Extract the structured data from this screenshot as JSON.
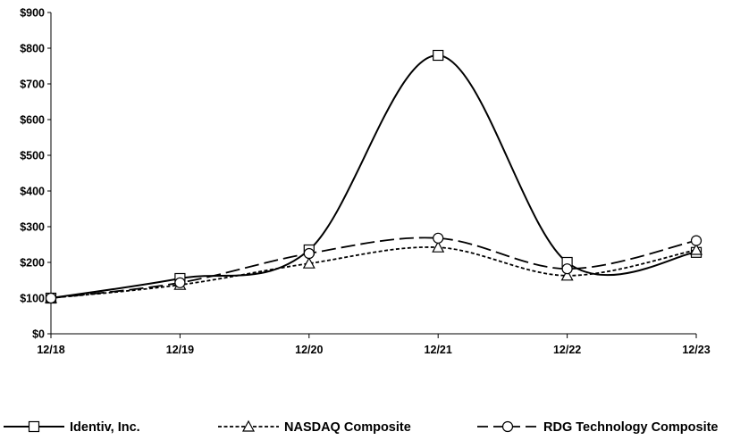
{
  "chart_data": {
    "type": "line",
    "title": "",
    "xlabel": "",
    "ylabel": "",
    "categories": [
      "12/18",
      "12/19",
      "12/20",
      "12/21",
      "12/22",
      "12/23"
    ],
    "y_ticks": [
      "$0",
      "$100",
      "$200",
      "$300",
      "$400",
      "$500",
      "$600",
      "$700",
      "$800",
      "$900"
    ],
    "ylim": [
      0,
      900
    ],
    "grid": false,
    "legend_position": "bottom",
    "series": [
      {
        "name": "Identiv, Inc.",
        "values": [
          100,
          155,
          235,
          780,
          200,
          228
        ],
        "line_style": "solid",
        "marker": "square",
        "color": "#000000"
      },
      {
        "name": "NASDAQ Composite",
        "values": [
          100,
          137,
          197,
          242,
          163,
          235
        ],
        "line_style": "dotted",
        "marker": "triangle",
        "color": "#000000"
      },
      {
        "name": "RDG Technology Composite",
        "values": [
          100,
          143,
          225,
          268,
          182,
          261
        ],
        "line_style": "long-dash",
        "marker": "circle",
        "color": "#000000"
      }
    ]
  }
}
